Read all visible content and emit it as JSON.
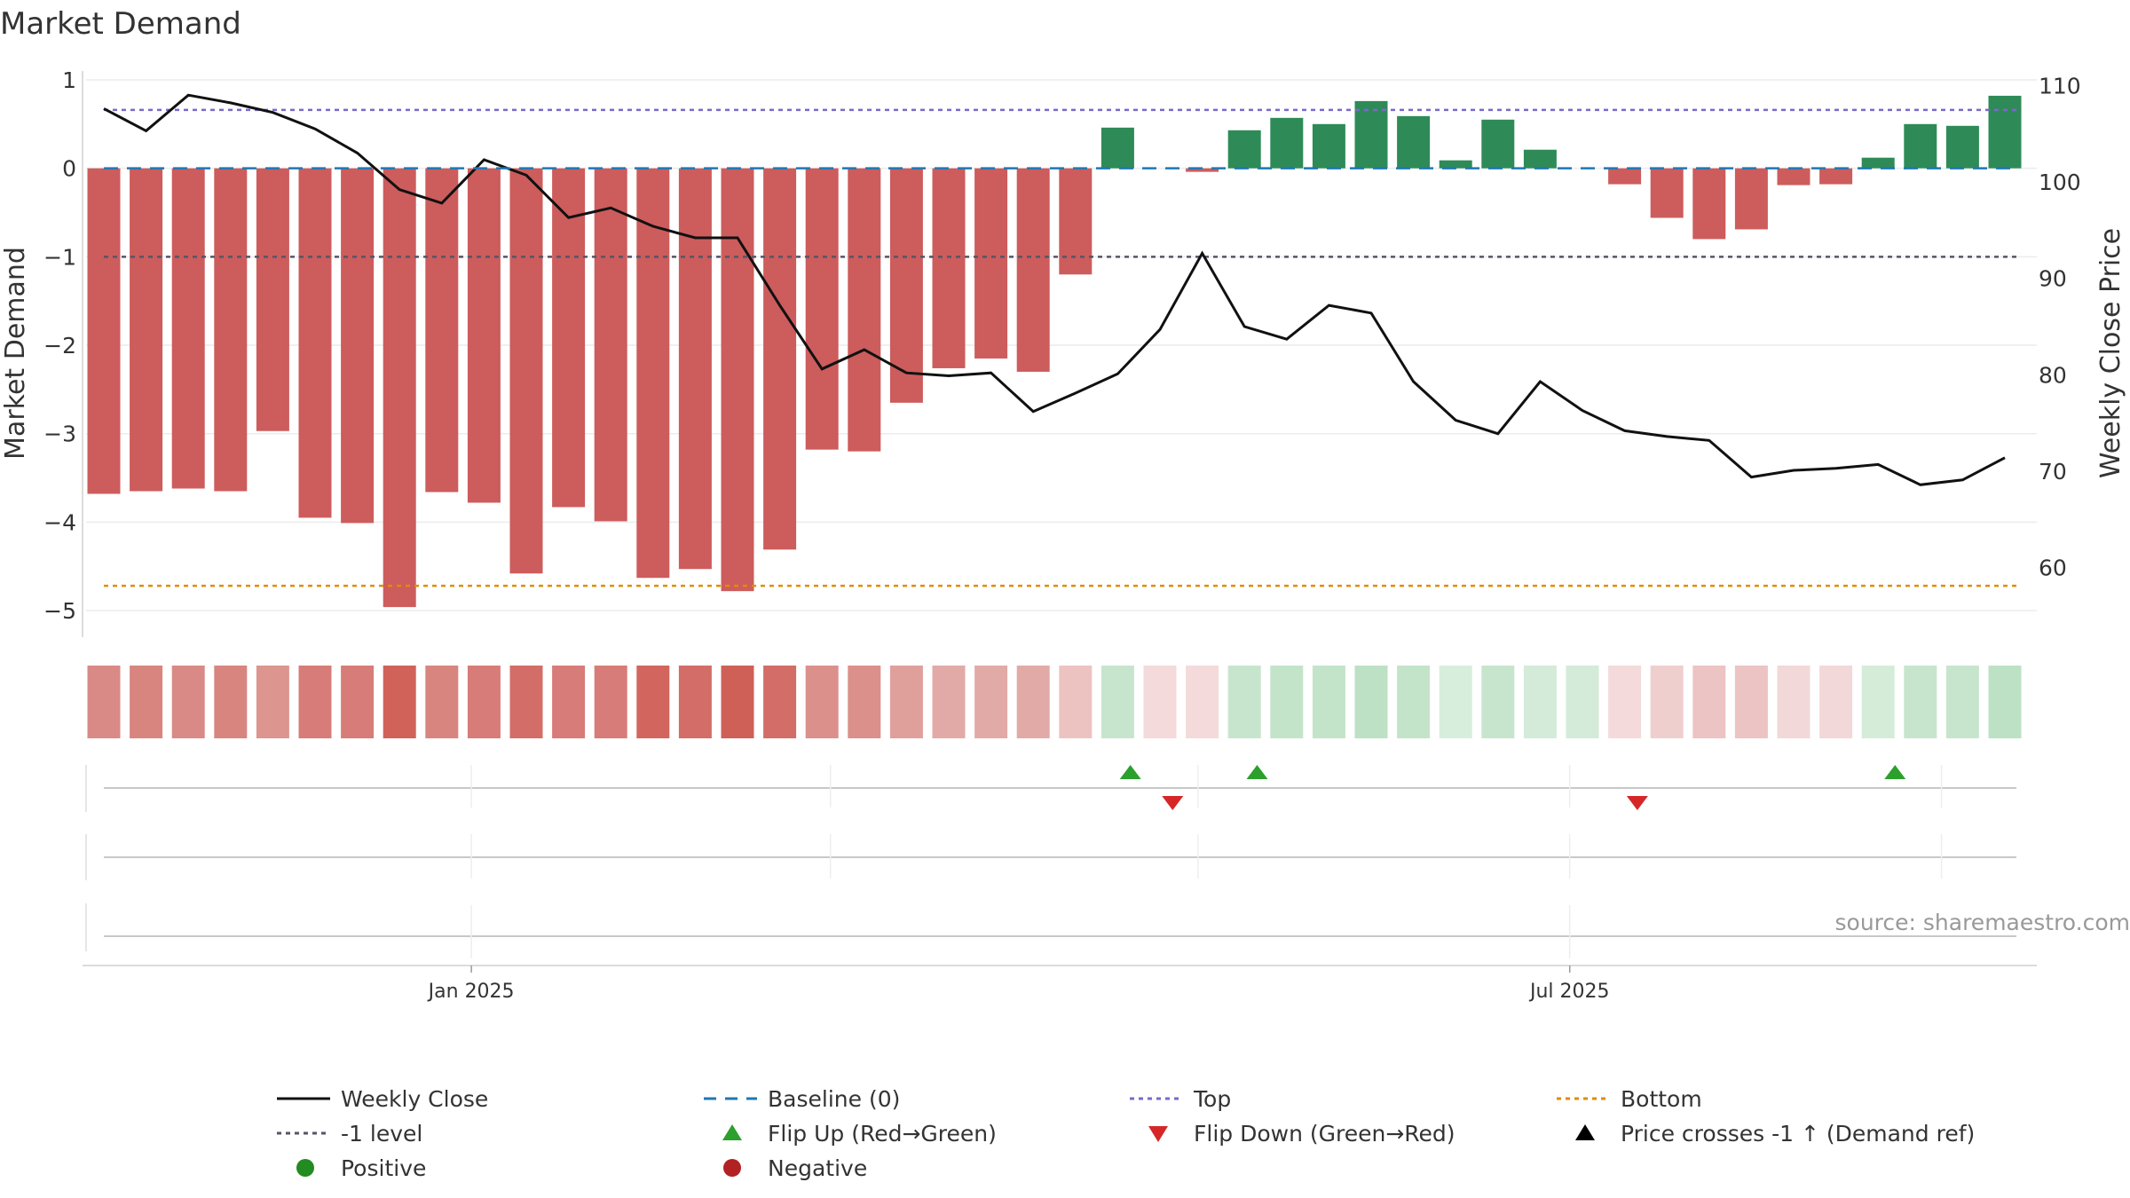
{
  "chart_data": {
    "type": "bar",
    "title": "Market Demand",
    "ylabel_left": "Market Demand",
    "ylabel_right": "Weekly Close Price",
    "ylim_left": [
      -5.3,
      1.1
    ],
    "ylim_right": [
      52.8,
      111.5
    ],
    "yticks_left": [
      {
        "v": 1,
        "label": "1"
      },
      {
        "v": 0,
        "label": "0"
      },
      {
        "v": -1,
        "label": "−1"
      },
      {
        "v": -2,
        "label": "−2"
      },
      {
        "v": -3,
        "label": "−3"
      },
      {
        "v": -4,
        "label": "−4"
      },
      {
        "v": -5,
        "label": "−5"
      }
    ],
    "yticks_right": [
      {
        "v": 110,
        "label": "110"
      },
      {
        "v": 100,
        "label": "100"
      },
      {
        "v": 90,
        "label": "90"
      },
      {
        "v": 80,
        "label": "80"
      },
      {
        "v": 70,
        "label": "70"
      },
      {
        "v": 60,
        "label": "60"
      }
    ],
    "xticks": [
      {
        "index": 8.7,
        "label": "Jan 2025"
      },
      {
        "index": 34.7,
        "label": "Jul 2025"
      }
    ],
    "x_gridlines": [
      8.7,
      17.2,
      25.9,
      34.7,
      43.5
    ],
    "demand": [
      -3.68,
      -3.65,
      -3.62,
      -3.65,
      -2.97,
      -3.95,
      -4.01,
      -4.96,
      -3.66,
      -3.78,
      -4.58,
      -3.83,
      -3.99,
      -4.63,
      -4.53,
      -4.78,
      -4.31,
      -3.18,
      -3.2,
      -2.65,
      -2.26,
      -2.15,
      -2.3,
      -1.2,
      0.46,
      0.0,
      -0.04,
      0.43,
      0.57,
      0.5,
      0.76,
      0.59,
      0.09,
      0.55,
      0.21,
      0.0,
      -0.18,
      -0.56,
      -0.8,
      -0.69,
      -0.19,
      -0.18,
      0.12,
      0.5,
      0.48,
      0.82
    ],
    "weekly_close": [
      107.6,
      105.3,
      109.0,
      108.2,
      107.2,
      105.5,
      103.0,
      99.2,
      97.8,
      102.3,
      100.7,
      96.3,
      97.3,
      95.4,
      94.2,
      94.2,
      87.2,
      80.6,
      82.6,
      80.2,
      79.9,
      80.2,
      76.2,
      78.1,
      80.1,
      84.7,
      92.6,
      85.0,
      83.7,
      87.2,
      86.4,
      79.3,
      75.3,
      73.9,
      79.3,
      76.3,
      74.2,
      73.6,
      73.2,
      69.4,
      70.1,
      70.3,
      70.7,
      68.6,
      69.1,
      71.4
    ],
    "demand_strip": [
      {
        "color": "#d98a86"
      },
      {
        "color": "#d8857f"
      },
      {
        "color": "#d98a86"
      },
      {
        "color": "#d8857f"
      },
      {
        "color": "#dc958f"
      },
      {
        "color": "#d77c78"
      },
      {
        "color": "#d77c78"
      },
      {
        "color": "#d0625a"
      },
      {
        "color": "#d8857f"
      },
      {
        "color": "#d77c78"
      },
      {
        "color": "#d36d67"
      },
      {
        "color": "#d77c78"
      },
      {
        "color": "#d77c78"
      },
      {
        "color": "#d2665f"
      },
      {
        "color": "#d36d67"
      },
      {
        "color": "#ce6058"
      },
      {
        "color": "#d36d67"
      },
      {
        "color": "#dc908c"
      },
      {
        "color": "#dc908c"
      },
      {
        "color": "#dfa09c"
      },
      {
        "color": "#e2aaa6"
      },
      {
        "color": "#e2aaa6"
      },
      {
        "color": "#e2aaa6"
      },
      {
        "color": "#ecc3c1"
      },
      {
        "color": "#c7e5cd"
      },
      {
        "color": "#f4dada"
      },
      {
        "color": "#f4dada"
      },
      {
        "color": "#c7e5cd"
      },
      {
        "color": "#c4e4ca"
      },
      {
        "color": "#c4e4ca"
      },
      {
        "color": "#bde1c4"
      },
      {
        "color": "#c4e4ca"
      },
      {
        "color": "#d8eedc"
      },
      {
        "color": "#c7e5cd"
      },
      {
        "color": "#d3ebd8"
      },
      {
        "color": "#d3ebd8"
      },
      {
        "color": "#f4dada"
      },
      {
        "color": "#efcfce"
      },
      {
        "color": "#ebc4c3"
      },
      {
        "color": "#ebc4c3"
      },
      {
        "color": "#f2d8d8"
      },
      {
        "color": "#f2d8d8"
      },
      {
        "color": "#d5ecd9"
      },
      {
        "color": "#c7e5cd"
      },
      {
        "color": "#c7e5cd"
      },
      {
        "color": "#bde1c4"
      }
    ],
    "flip_up_indices": [
      24.3,
      27.3,
      42.4
    ],
    "flip_down_indices": [
      25.3,
      36.3
    ],
    "reference_lines": {
      "baseline": 0,
      "top": 0.66,
      "minus_one": -1,
      "bottom": -4.72
    },
    "colors": {
      "positive_bar": "#2e8b57",
      "negative_bar": "#cd5c5c",
      "close_line": "#111111",
      "baseline": "#1f77b4",
      "top": "#7b68c9",
      "minus_one": "#555566",
      "bottom": "#e08c00",
      "flip_up": "#2ca02c",
      "flip_down": "#d62728",
      "positive_marker": "#228b22",
      "negative_marker": "#b22222"
    },
    "legend": [
      {
        "label": "Weekly Close",
        "symbol": "line-solid",
        "color": "#111111"
      },
      {
        "label": "Baseline (0)",
        "symbol": "line-dash",
        "color": "#1f77b4"
      },
      {
        "label": "Top",
        "symbol": "line-dot",
        "color": "#7b68c9"
      },
      {
        "label": "Bottom",
        "symbol": "line-dot",
        "color": "#e08c00"
      },
      {
        "label": "-1 level",
        "symbol": "line-dot",
        "color": "#555566"
      },
      {
        "label": "Flip Up (Red→Green)",
        "symbol": "triangle-up",
        "color": "#2ca02c"
      },
      {
        "label": "Flip Down (Green→Red)",
        "symbol": "triangle-down",
        "color": "#d62728"
      },
      {
        "label": "Price crosses -1 ↑ (Demand ref)",
        "symbol": "triangle-up",
        "color": "#000000"
      },
      {
        "label": "Positive",
        "symbol": "circle",
        "color": "#228b22"
      },
      {
        "label": "Negative",
        "symbol": "circle",
        "color": "#b22222"
      }
    ],
    "legend_position": "bottom",
    "source": "source: sharemaestro.com",
    "grid": true
  }
}
